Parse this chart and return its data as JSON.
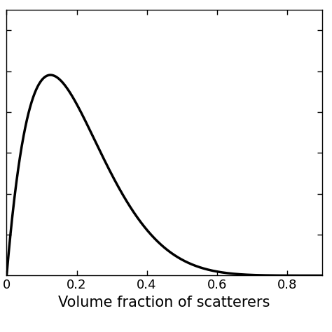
{
  "xlabel": "Volume fraction of scatterers",
  "ylabel": "",
  "xlim": [
    0,
    0.9
  ],
  "ylim": [
    0,
    0.065
  ],
  "xticks": [
    0,
    0.2,
    0.4,
    0.6,
    0.8
  ],
  "yticks": [
    0.01,
    0.02,
    0.03,
    0.04,
    0.05,
    0.06
  ],
  "line_color": "#000000",
  "line_width": 2.5,
  "background_color": "#ffffff",
  "xlabel_fontsize": 15,
  "tick_fontsize": 13,
  "figsize": [
    4.74,
    4.74
  ],
  "dpi": 100,
  "n_exponent": 7
}
